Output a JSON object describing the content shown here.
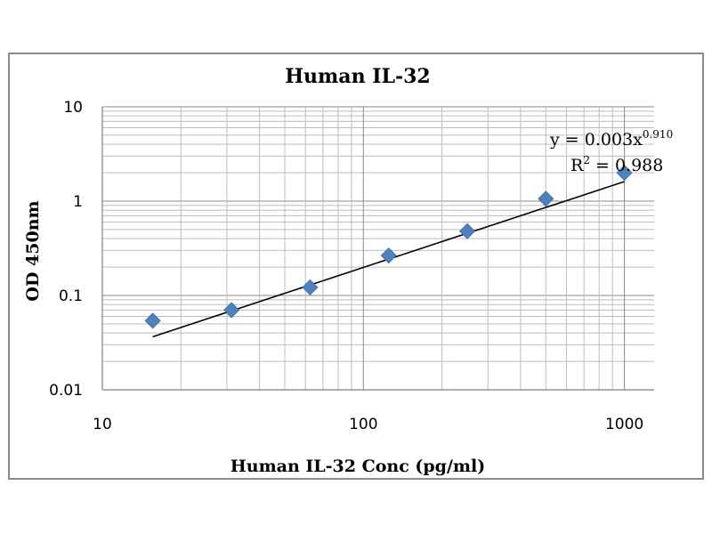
{
  "chart_data": {
    "type": "scatter",
    "title": "Human IL-32",
    "xlabel": "Human IL-32 Conc (pg/ml)",
    "ylabel": "OD 450nm",
    "x_scale": "log",
    "y_scale": "log",
    "xlim": [
      10,
      1300
    ],
    "ylim": [
      0.01,
      10
    ],
    "x_ticks": [
      10,
      100,
      1000
    ],
    "x_tick_labels": [
      "10",
      "100",
      "1000"
    ],
    "y_ticks": [
      0.01,
      0.1,
      1,
      10
    ],
    "y_tick_labels": [
      "0.01",
      "0.1",
      "1",
      "10"
    ],
    "grid": true,
    "marker_color": "#4f81bd",
    "line_color": "#000000",
    "series": [
      {
        "x": [
          15.6,
          31.25,
          62.5,
          125,
          250,
          500,
          1000
        ],
        "y": [
          0.054,
          0.07,
          0.122,
          0.265,
          0.48,
          1.06,
          2.0
        ]
      }
    ],
    "trendline": {
      "type": "power",
      "coefficient": 0.003,
      "exponent": 0.91,
      "x_range": [
        15.6,
        1000
      ],
      "equation_text": "y = 0.003x",
      "exponent_text": "0.910",
      "r2_prefix": "R",
      "r2_sup": "2",
      "r2_text": " = 0.988"
    }
  }
}
